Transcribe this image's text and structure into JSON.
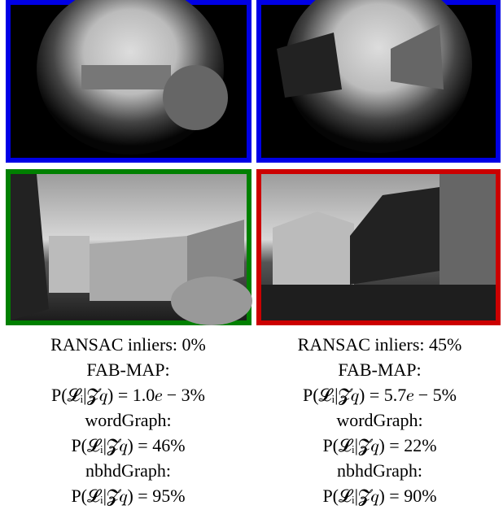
{
  "captions": [
    {
      "lines": [
        "RANSAC inliers: 0%",
        "FAB-MAP:",
        "P(𝓛ᵢ|𝓩𝑞) = 1.0𝑒 − 3%",
        "wordGraph:",
        "P(𝓛ᵢ|𝓩𝑞) = 46%",
        "nbhdGraph:",
        "P(𝓛ᵢ|𝓩𝑞) = 95%"
      ]
    },
    {
      "lines": [
        "RANSAC inliers: 45%",
        "FAB-MAP:",
        "P(𝓛ᵢ|𝓩𝑞) = 5.7𝑒 − 5%",
        "wordGraph:",
        "P(𝓛ᵢ|𝓩𝑞) = 22%",
        "nbhdGraph:",
        "P(𝓛ᵢ|𝓩𝑞) = 90%"
      ]
    }
  ]
}
